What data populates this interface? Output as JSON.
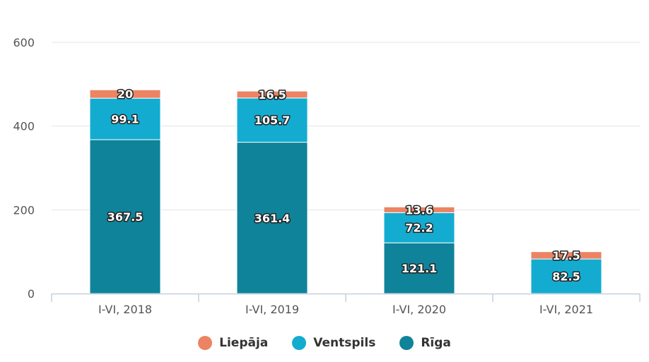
{
  "chart_data": {
    "type": "bar",
    "stacked": true,
    "categories": [
      "I-VI, 2018",
      "I-VI, 2019",
      "I-VI, 2020",
      "I-VI, 2021"
    ],
    "series": [
      {
        "name": "Rīga",
        "color": "#0f8399",
        "values": [
          367.5,
          361.4,
          121.1,
          null
        ],
        "labels": [
          "367.5",
          "361.4",
          "121.1",
          ""
        ]
      },
      {
        "name": "Ventspils",
        "color": "#13acd0",
        "values": [
          99.1,
          105.7,
          72.2,
          82.5
        ],
        "labels": [
          "99.1",
          "105.7",
          "72.2",
          "82.5"
        ]
      },
      {
        "name": "Liepāja",
        "color": "#ec8363",
        "values": [
          20,
          16.5,
          13.6,
          17.5
        ],
        "labels": [
          "20",
          "16.5",
          "13.6",
          "17.5"
        ]
      }
    ],
    "legend_order": [
      "Liepāja",
      "Ventspils",
      "Rīga"
    ],
    "yticks": [
      "0",
      "200",
      "400",
      "600"
    ],
    "ylim": [
      0,
      600
    ],
    "grid": true,
    "legend_position": "bottom",
    "title": "",
    "xlabel": "",
    "ylabel": ""
  }
}
